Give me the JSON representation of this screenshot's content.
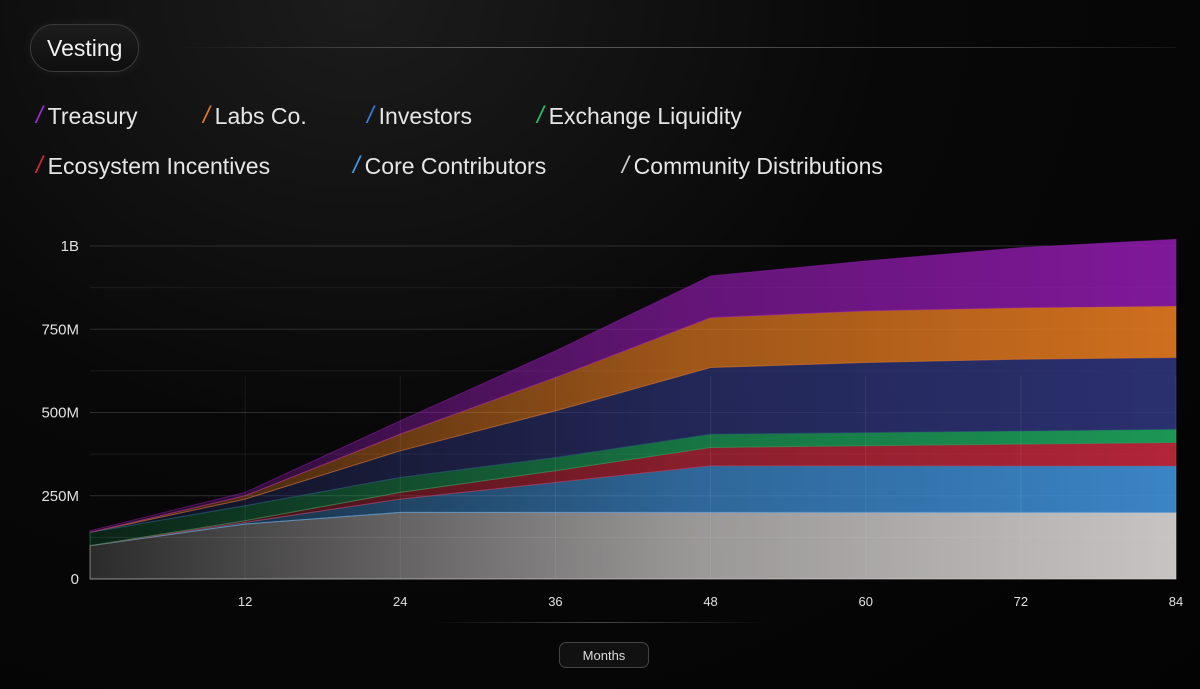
{
  "header": {
    "title": "Vesting"
  },
  "legend": {
    "row1": [
      {
        "label": "Treasury",
        "color": "#9b2bd6"
      },
      {
        "label": "Labs Co.",
        "color": "#e07a22"
      },
      {
        "label": "Investors",
        "color": "#3a7be0"
      },
      {
        "label": "Exchange Liquidity",
        "color": "#1fc46a"
      }
    ],
    "row2": [
      {
        "label": "Ecosystem Incentives",
        "color": "#d12a3a"
      },
      {
        "label": "Core Contributors",
        "color": "#3f9be8"
      },
      {
        "label": "Community Distributions",
        "color": "#cfcfcf"
      }
    ]
  },
  "x_axis_title": "Months",
  "chart_data": {
    "type": "area",
    "stacked": true,
    "x": [
      0,
      12,
      24,
      36,
      48,
      60,
      72,
      84
    ],
    "xticks": [
      "12",
      "24",
      "36",
      "48",
      "60",
      "72",
      "84"
    ],
    "xlim": [
      0,
      84
    ],
    "ylim": [
      0,
      1000
    ],
    "yunit": "M",
    "yticks": [
      {
        "value": 0,
        "label": "0"
      },
      {
        "value": 250,
        "label": "250M"
      },
      {
        "value": 500,
        "label": "500M"
      },
      {
        "value": 750,
        "label": "750M"
      },
      {
        "value": 1000,
        "label": "1B"
      }
    ],
    "series": [
      {
        "name": "Community Distributions",
        "color": "#d8d4d4",
        "values": [
          100,
          165,
          200,
          200,
          200,
          200,
          200,
          200
        ]
      },
      {
        "name": "Core Contributors",
        "color": "#3f8fd6",
        "values": [
          0,
          5,
          40,
          90,
          140,
          140,
          140,
          140
        ]
      },
      {
        "name": "Ecosystem Incentives",
        "color": "#c0283c",
        "values": [
          0,
          5,
          20,
          35,
          55,
          60,
          65,
          70
        ]
      },
      {
        "name": "Exchange Liquidity",
        "color": "#1ea35c",
        "values": [
          40,
          45,
          45,
          40,
          40,
          40,
          40,
          40
        ]
      },
      {
        "name": "Investors",
        "color": "#2e3478",
        "values": [
          0,
          20,
          80,
          140,
          200,
          210,
          215,
          215
        ]
      },
      {
        "name": "Labs Co.",
        "color": "#e07820",
        "values": [
          0,
          10,
          50,
          100,
          150,
          155,
          155,
          155
        ]
      },
      {
        "name": "Treasury",
        "color": "#8a1aa6",
        "values": [
          5,
          10,
          40,
          80,
          125,
          150,
          180,
          200
        ]
      }
    ],
    "grid": true
  }
}
